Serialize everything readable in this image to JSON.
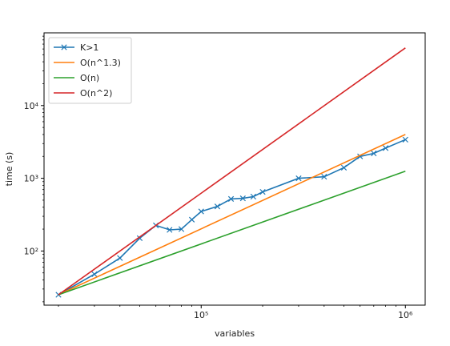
{
  "chart_data": {
    "type": "line",
    "xlabel": "variables",
    "ylabel": "time (s)",
    "x_scale": "log",
    "y_scale": "log",
    "xlim": [
      17000,
      1250000
    ],
    "ylim": [
      18,
      100000
    ],
    "x_ticks": [
      {
        "value": 100000,
        "label": "10⁵"
      },
      {
        "value": 1000000,
        "label": "10⁶"
      }
    ],
    "y_ticks": [
      {
        "value": 100,
        "label": "10²"
      },
      {
        "value": 1000,
        "label": "10³"
      },
      {
        "value": 10000,
        "label": "10⁴"
      }
    ],
    "legend_position": "top-left",
    "grid": false,
    "series": [
      {
        "name": "K>1",
        "color": "#1f77b4",
        "marker": "x",
        "x": [
          20000,
          30000,
          40000,
          50000,
          60000,
          70000,
          80000,
          90000,
          100000,
          120000,
          140000,
          160000,
          180000,
          200000,
          300000,
          400000,
          500000,
          600000,
          700000,
          800000,
          1000000
        ],
        "y": [
          25,
          48,
          80,
          150,
          225,
          195,
          200,
          270,
          350,
          410,
          520,
          530,
          560,
          650,
          1000,
          1050,
          1400,
          2000,
          2200,
          2600,
          3400
        ]
      },
      {
        "name": "O(n^1.3)",
        "color": "#ff7f0e",
        "x": [
          20000,
          1000000
        ],
        "y": [
          25,
          4000
        ]
      },
      {
        "name": "O(n)",
        "color": "#2ca02c",
        "x": [
          20000,
          1000000
        ],
        "y": [
          25,
          1250
        ]
      },
      {
        "name": "O(n^2)",
        "color": "#d62728",
        "x": [
          20000,
          1000000
        ],
        "y": [
          25,
          62000
        ]
      }
    ]
  }
}
